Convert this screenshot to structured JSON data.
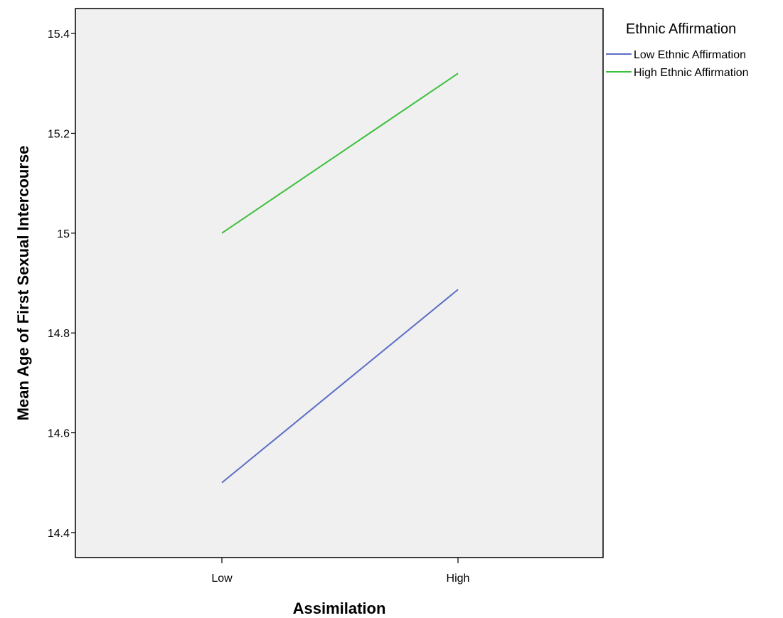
{
  "chart_data": {
    "type": "line",
    "title": "",
    "xlabel": "Assimilation",
    "ylabel": "Mean Age of First Sexual Intercourse",
    "categories": [
      "Low",
      "High"
    ],
    "ylim": [
      14.35,
      15.45
    ],
    "yticks": [
      14.4,
      14.6,
      14.8,
      15,
      15.2,
      15.4
    ],
    "ytick_labels": [
      "14.4",
      "14.6",
      "14.8",
      "15",
      "15.2",
      "15.4"
    ],
    "grid": false,
    "plot_background": "#f0f0f0",
    "legend": {
      "title": "Ethnic Affirmation",
      "placement": "outside-top-right"
    },
    "series": [
      {
        "name": "Low Ethnic Affirmation",
        "color": "#5b6ec4",
        "values": [
          14.5,
          14.887
        ]
      },
      {
        "name": "High Ethnic Affirmation",
        "color": "#3cbf3c",
        "values": [
          15.0,
          15.32
        ]
      }
    ]
  }
}
